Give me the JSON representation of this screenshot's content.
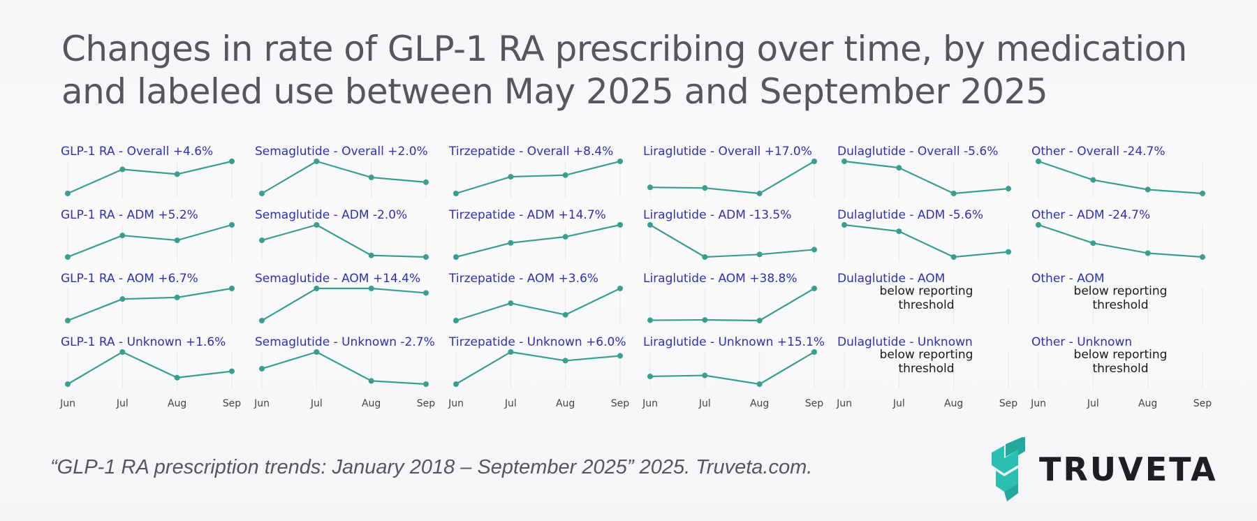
{
  "title_line1": "Changes in rate of GLP-1 RA prescribing over time, by medication",
  "title_line2": "and labeled use between May 2025 and September 2025",
  "citation": "“GLP-1 RA prescription trends: January 2018 – September 2025” 2025. Truveta.com.",
  "logo": {
    "wordmark": "TRUVETA",
    "color": "#2bbfb1"
  },
  "colors": {
    "line": "#3a9e8f",
    "label": "#2e30b4",
    "note": "#1a1a1a",
    "grid": "#e6e7ea"
  },
  "chart_data": {
    "type": "line",
    "layout": "small-multiples 4x6",
    "x": [
      "Jun",
      "Jul",
      "Aug",
      "Sep"
    ],
    "panels": [
      {
        "label": "GLP-1 RA - Overall +4.6%",
        "values": [
          0.0,
          0.75,
          0.6,
          1.0
        ]
      },
      {
        "label": "Semaglutide - Overall +2.0%",
        "values": [
          0.0,
          1.0,
          0.5,
          0.35
        ]
      },
      {
        "label": "Tirzepatide - Overall +8.4%",
        "values": [
          0.0,
          0.52,
          0.57,
          1.0
        ]
      },
      {
        "label": "Liraglutide - Overall +17.0%",
        "values": [
          0.19,
          0.17,
          0.0,
          1.0
        ]
      },
      {
        "label": "Dulaglutide - Overall -5.6%",
        "values": [
          1.0,
          0.8,
          0.0,
          0.15
        ]
      },
      {
        "label": "Other - Overall -24.7%",
        "values": [
          1.0,
          0.42,
          0.12,
          0.0
        ]
      },
      {
        "label": "GLP-1 RA - ADM +5.2%",
        "values": [
          0.0,
          0.67,
          0.52,
          1.0
        ]
      },
      {
        "label": "Semaglutide - ADM -2.0%",
        "values": [
          0.52,
          1.0,
          0.05,
          0.0
        ]
      },
      {
        "label": "Tirzepatide - ADM +14.7%",
        "values": [
          0.0,
          0.44,
          0.63,
          1.0
        ]
      },
      {
        "label": "Liraglutide - ADM -13.5%",
        "values": [
          1.0,
          0.0,
          0.08,
          0.23
        ]
      },
      {
        "label": "Dulaglutide - ADM -5.6%",
        "values": [
          1.0,
          0.8,
          0.0,
          0.16
        ]
      },
      {
        "label": "Other - ADM -24.7%",
        "values": [
          1.0,
          0.43,
          0.12,
          0.0
        ]
      },
      {
        "label": "GLP-1 RA - AOM +6.7%",
        "values": [
          0.0,
          0.67,
          0.72,
          1.0
        ]
      },
      {
        "label": "Semaglutide - AOM +14.4%",
        "values": [
          0.0,
          1.0,
          1.0,
          0.86
        ]
      },
      {
        "label": "Tirzepatide - AOM +3.6%",
        "values": [
          0.0,
          0.54,
          0.18,
          1.0
        ]
      },
      {
        "label": "Liraglutide - AOM +38.8%",
        "values": [
          0.01,
          0.02,
          0.0,
          1.0
        ]
      },
      {
        "label": "Dulaglutide - AOM",
        "note": "below reporting threshold"
      },
      {
        "label": "Other - AOM",
        "note": "below reporting threshold"
      },
      {
        "label": "GLP-1 RA - Unknown +1.6%",
        "values": [
          0.0,
          1.0,
          0.2,
          0.4
        ]
      },
      {
        "label": "Semaglutide - Unknown -2.7%",
        "values": [
          0.48,
          1.0,
          0.1,
          0.0
        ]
      },
      {
        "label": "Tirzepatide - Unknown +6.0%",
        "values": [
          0.0,
          1.0,
          0.73,
          0.88
        ]
      },
      {
        "label": "Liraglutide - Unknown +15.1%",
        "values": [
          0.24,
          0.27,
          0.0,
          1.0
        ]
      },
      {
        "label": "Dulaglutide - Unknown",
        "note": "below reporting threshold"
      },
      {
        "label": "Other - Unknown",
        "note": "below reporting threshold"
      }
    ]
  }
}
